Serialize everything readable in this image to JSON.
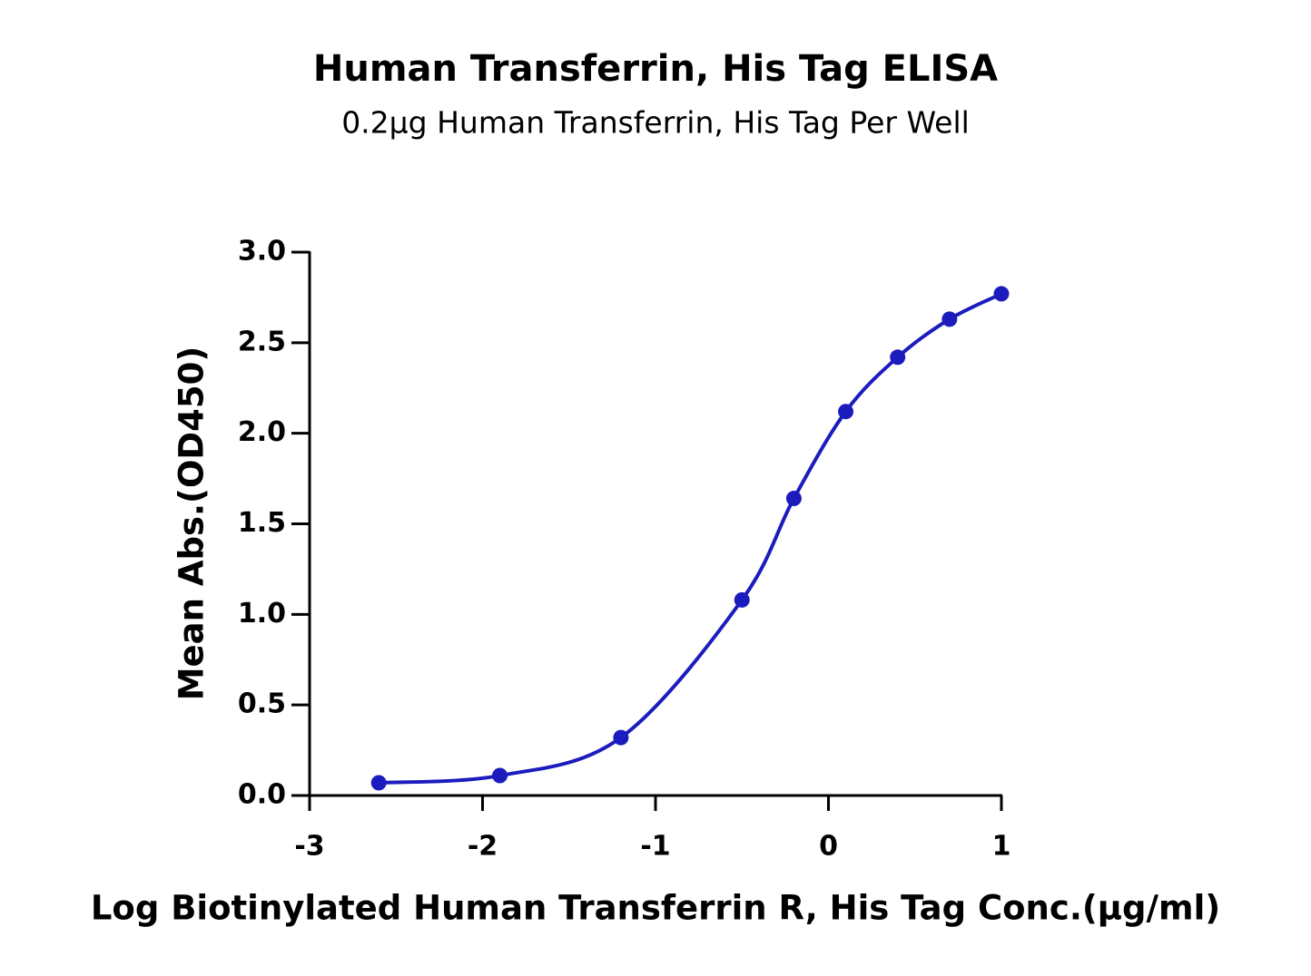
{
  "chart_data": {
    "type": "line",
    "title": "Human Transferrin, His Tag ELISA",
    "subtitle": "0.2μg Human Transferrin, His Tag Per Well",
    "x_label": "Log Biotinylated Human Transferrin R, His Tag Conc.(μg/ml)",
    "y_label": "Mean Abs.(OD450)",
    "x": [
      -2.6,
      -1.9,
      -1.2,
      -0.5,
      -0.2,
      0.1,
      0.4,
      0.7,
      1.0
    ],
    "series": [
      {
        "color": "#1c1cbe",
        "values": [
          0.07,
          0.11,
          0.32,
          1.08,
          1.64,
          2.12,
          2.42,
          2.63,
          2.77
        ]
      }
    ],
    "xlim": [
      -3,
      1
    ],
    "xticks": [
      -3,
      -2,
      -1,
      0,
      1
    ],
    "ylim": [
      0,
      3
    ],
    "yticks": [
      {
        "value": 0,
        "label": "0.0"
      },
      0.5,
      {
        "value": 1,
        "label": "1.0"
      },
      1.5,
      {
        "value": 2,
        "label": "2.0"
      },
      2.5,
      {
        "value": 3,
        "label": "3.0"
      }
    ],
    "grid": false
  }
}
